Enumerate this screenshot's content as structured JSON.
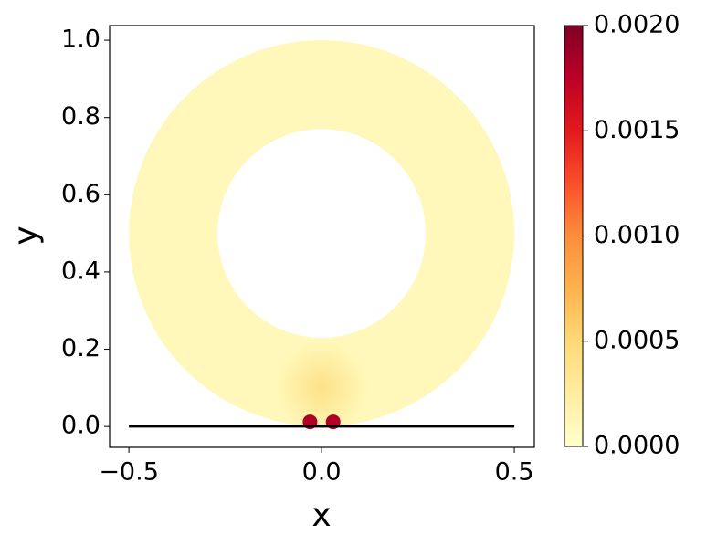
{
  "chart_data": {
    "type": "field",
    "xlabel": "x",
    "ylabel": "y",
    "xlim": [
      -0.55,
      0.552
    ],
    "ylim": [
      -0.054,
      1.038
    ],
    "xticks": [
      {
        "value": -0.5,
        "label": "−0.5"
      },
      {
        "value": 0,
        "label": "0.0"
      },
      {
        "value": 0.5,
        "label": "0.5"
      }
    ],
    "yticks": [
      {
        "value": 0,
        "label": "0.0"
      },
      {
        "value": 0.2,
        "label": "0.2"
      },
      {
        "value": 0.4,
        "label": "0.4"
      },
      {
        "value": 0.6,
        "label": "0.6"
      },
      {
        "value": 0.8,
        "label": "0.8"
      },
      {
        "value": 1.0,
        "label": "1.0"
      }
    ],
    "colormap": [
      "#ffffcc",
      "#ffeda0",
      "#fed976",
      "#feb24c",
      "#fd8d3c",
      "#fc4e2a",
      "#e31a1c",
      "#bd0026",
      "#800026"
    ],
    "clim": [
      0,
      0.002
    ],
    "cticks": [
      {
        "value": 0,
        "label": "0.0000"
      },
      {
        "value": 0.0005,
        "label": "0.0005"
      },
      {
        "value": 0.001,
        "label": "0.0010"
      },
      {
        "value": 0.0015,
        "label": "0.0015"
      },
      {
        "value": 0.002,
        "label": "0.0020"
      }
    ],
    "annulus": {
      "center": [
        0,
        0.5
      ],
      "outer_radius": 0.5,
      "inner_radius": 0.27,
      "value": 0.0001
    },
    "blob": {
      "x": 0,
      "y": 0.1,
      "radius": 0.12,
      "value": 0.0004
    },
    "hotspots": [
      {
        "x": -0.03,
        "y": 0.012,
        "value": 0.0018
      },
      {
        "x": 0.03,
        "y": 0.012,
        "value": 0.0018
      }
    ],
    "wall": {
      "x": [
        -0.5,
        0.5
      ],
      "y": [
        0,
        0
      ]
    }
  }
}
